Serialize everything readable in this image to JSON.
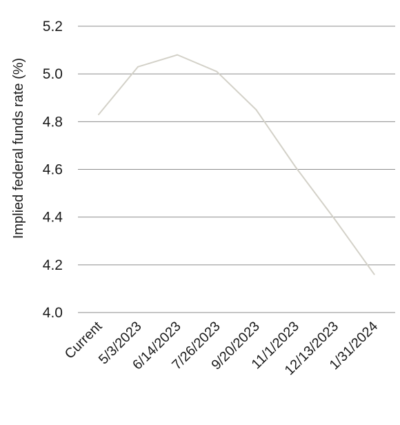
{
  "chart_data": {
    "type": "line",
    "title": "",
    "xlabel": "",
    "ylabel": "Implied federal funds rate (%)",
    "categories": [
      "Current",
      "5/3/2023",
      "6/14/2023",
      "7/26/2023",
      "9/20/2023",
      "11/1/2023",
      "12/13/2023",
      "1/31/2024"
    ],
    "series": [
      {
        "values": [
          4.83,
          5.03,
          5.08,
          5.01,
          4.85,
          4.61,
          4.39,
          4.16
        ]
      }
    ],
    "ylim": [
      4.0,
      5.2
    ],
    "yticks": [
      "4.0",
      "4.2",
      "4.4",
      "4.6",
      "4.8",
      "5.0",
      "5.2"
    ],
    "grid": true,
    "legend": "none",
    "colors": {
      "line": "#d3d1c8",
      "grid": "#8c8c8c",
      "text": "#1a1a1a"
    }
  }
}
